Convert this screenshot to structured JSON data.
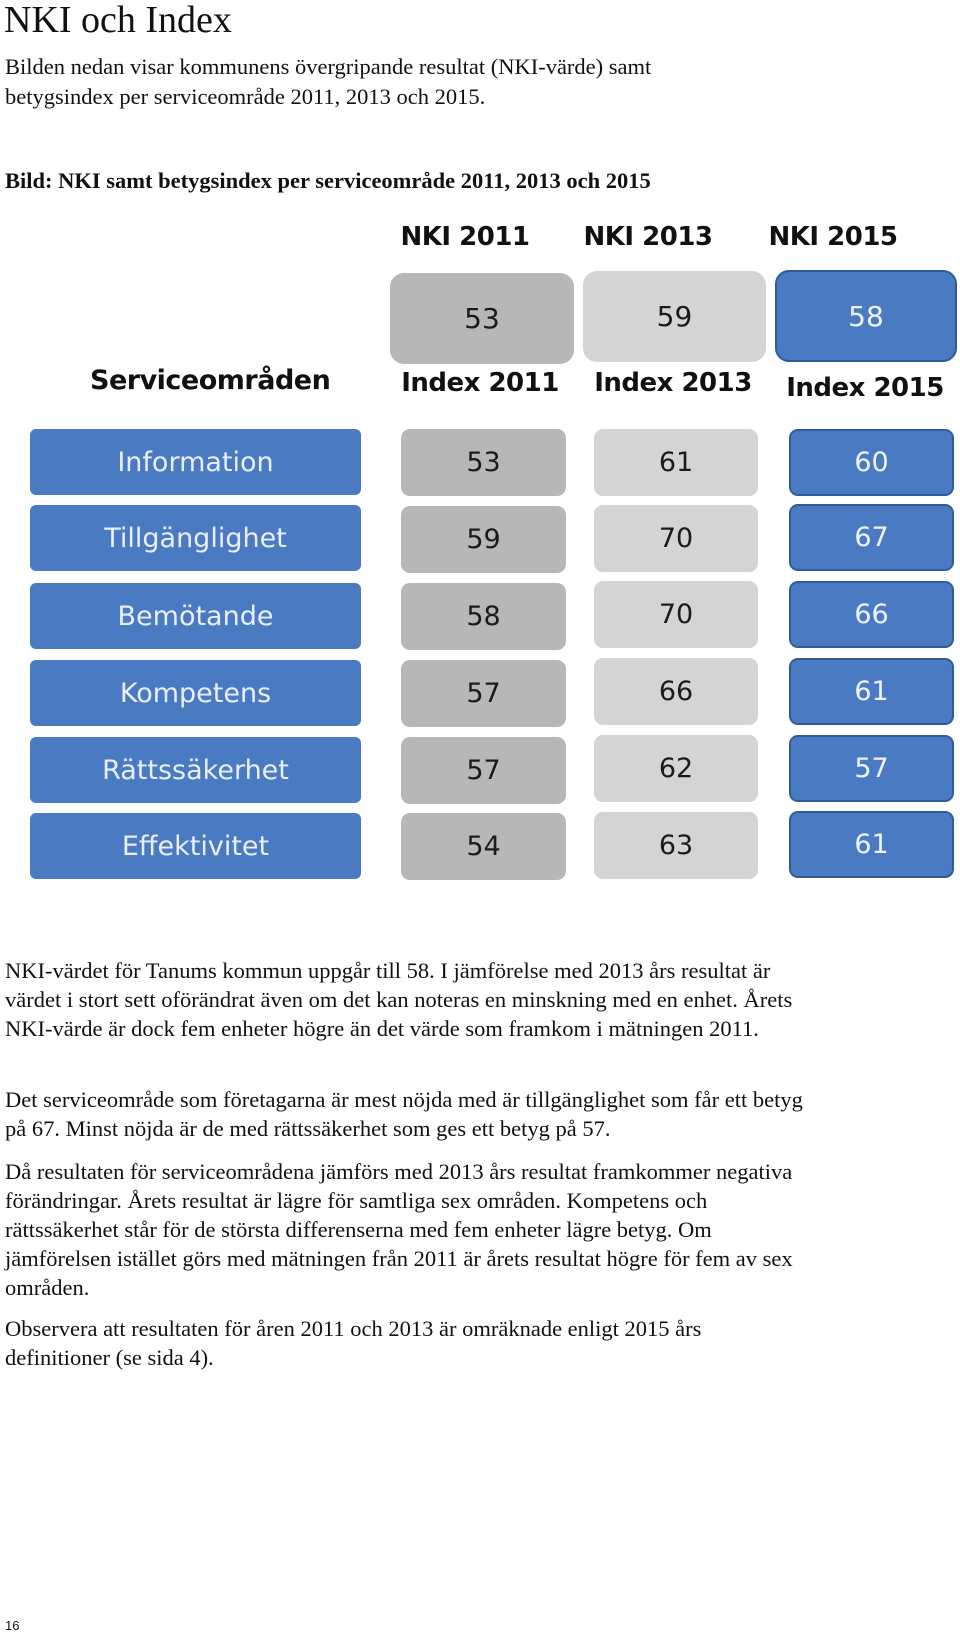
{
  "title": "NKI och Index",
  "intro": "Bilden nedan visar kommunens övergripande resultat (NKI-värde) samt betygsindex per serviceområde 2011, 2013 och 2015.",
  "figure_caption": "Bild: NKI samt betygsindex per serviceområde 2011, 2013 och 2015",
  "chart_data": {
    "type": "table",
    "title": "Bild: NKI samt betygsindex per serviceområde 2011, 2013 och 2015",
    "nki_headers": [
      "NKI 2011",
      "NKI 2013",
      "NKI 2015"
    ],
    "nki_values": [
      53,
      59,
      58
    ],
    "row_header": "Serviceområden",
    "index_headers": [
      "Index 2011",
      "Index 2013",
      "Index 2015"
    ],
    "categories": [
      "Information",
      "Tillgänglighet",
      "Bemötande",
      "Kompetens",
      "Rättssäkerhet",
      "Effektivitet"
    ],
    "series": [
      {
        "name": "Index 2011",
        "values": [
          53,
          59,
          58,
          57,
          57,
          54
        ]
      },
      {
        "name": "Index 2013",
        "values": [
          61,
          70,
          70,
          66,
          62,
          63
        ]
      },
      {
        "name": "Index 2015",
        "values": [
          60,
          67,
          66,
          61,
          57,
          61
        ]
      }
    ]
  },
  "paragraphs": [
    "NKI-värdet för Tanums kommun uppgår till 58. I jämförelse med 2013 års resultat är värdet i stort sett oförändrat även om det kan noteras en minskning med en enhet. Årets NKI-värde är dock fem enheter högre än det värde som framkom i mätningen 2011.",
    "Det serviceområde som företagarna är mest nöjda med är tillgänglighet som får ett betyg på 67. Minst nöjda är de med rättssäkerhet som ges ett betyg på 57.",
    "Då resultaten för serviceområdena jämförs med 2013 års resultat framkommer negativa förändringar. Årets resultat är lägre för samtliga sex områden. Kompetens och rättssäkerhet står för de största differenserna med fem enheter lägre betyg. Om jämförelsen istället görs med mätningen från 2011 är årets resultat högre för fem av sex områden.",
    "Observera att resultaten för åren 2011 och 2013 är omräknade enligt 2015 års definitioner (se sida 4)."
  ],
  "page_number": "16",
  "colors": {
    "blue": "#4a7bc2",
    "gray_2011": "#b7b7b7",
    "gray_2013": "#d4d4d4"
  }
}
